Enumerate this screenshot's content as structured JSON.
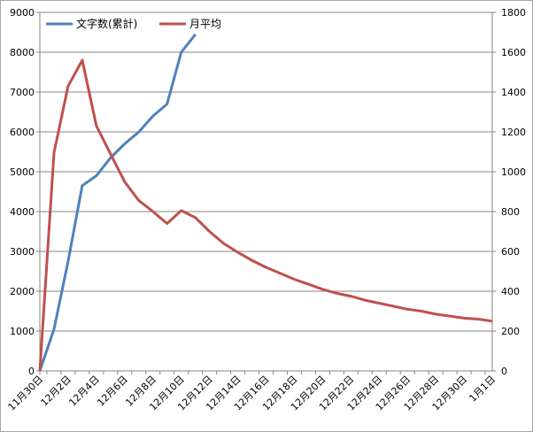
{
  "chart_data": {
    "type": "line",
    "title": "",
    "xlabel": "",
    "ylabel": "",
    "x_labels": [
      "11月30日",
      "12月2日",
      "12月4日",
      "12月6日",
      "12月8日",
      "12月10日",
      "12月12日",
      "12月14日",
      "12月16日",
      "12月18日",
      "12月20日",
      "12月22日",
      "12月24日",
      "12月26日",
      "12月28日",
      "12月30日",
      "1月1日"
    ],
    "ylim_left": [
      0,
      9000
    ],
    "yticks_left": [
      "0",
      "1000",
      "2000",
      "3000",
      "4000",
      "5000",
      "6000",
      "7000",
      "8000",
      "9000"
    ],
    "ylim_right": [
      0,
      1800
    ],
    "yticks_right": [
      "0",
      "200",
      "400",
      "600",
      "800",
      "1000",
      "1200",
      "1400",
      "1600",
      "1800"
    ],
    "grid": true,
    "legend_position": "top-left",
    "series": [
      {
        "name": "文字数(累計)",
        "axis": "left",
        "color": "#4f81bd",
        "x_index": [
          0,
          1,
          2,
          3,
          4,
          5,
          6,
          7,
          8,
          9,
          10,
          11
        ],
        "values": [
          0,
          1050,
          2750,
          4650,
          4900,
          5350,
          5700,
          6000,
          6400,
          6700,
          8000,
          8450
        ]
      },
      {
        "name": "月平均",
        "axis": "right",
        "color": "#c0504d",
        "x_index": [
          0,
          1,
          2,
          3,
          4,
          5,
          6,
          7,
          8,
          9,
          10,
          11,
          12,
          13,
          14,
          15,
          16,
          17,
          18,
          19,
          20,
          21,
          22,
          23,
          24,
          25,
          26,
          27,
          28,
          29,
          30,
          31,
          32
        ],
        "values": [
          0,
          1095,
          1430,
          1560,
          1230,
          1090,
          950,
          855,
          800,
          740,
          805,
          770,
          700,
          640,
          595,
          555,
          520,
          490,
          460,
          435,
          410,
          390,
          375,
          355,
          340,
          325,
          310,
          300,
          285,
          275,
          265,
          260,
          250
        ]
      }
    ]
  }
}
